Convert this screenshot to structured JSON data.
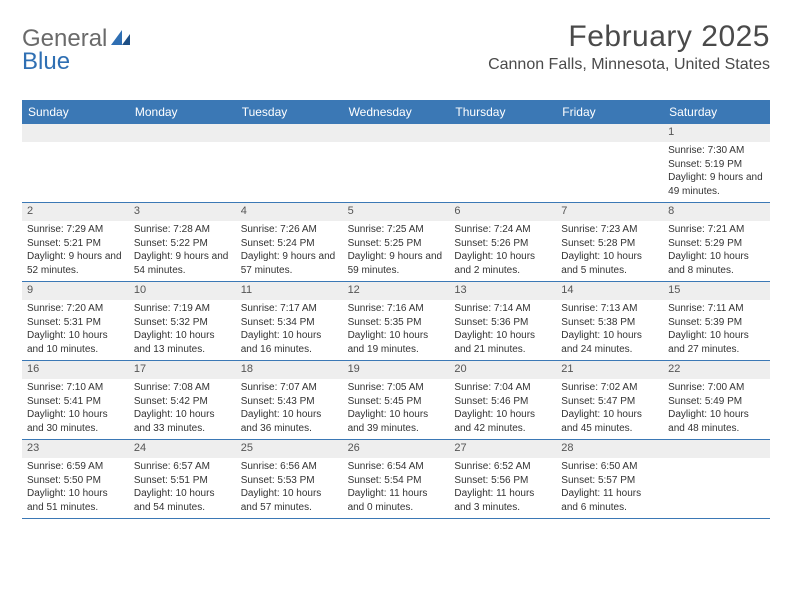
{
  "logo": {
    "text1": "General",
    "text2": "Blue"
  },
  "header": {
    "month_title": "February 2025",
    "location": "Cannon Falls, Minnesota, United States"
  },
  "colors": {
    "header_bar": "#3b78b5",
    "daynum_bg": "#eeeeee",
    "text": "#333333",
    "logo_blue": "#2f6fb3"
  },
  "day_names": [
    "Sunday",
    "Monday",
    "Tuesday",
    "Wednesday",
    "Thursday",
    "Friday",
    "Saturday"
  ],
  "weeks": [
    [
      {
        "n": "",
        "sunrise": "",
        "sunset": "",
        "daylight": ""
      },
      {
        "n": "",
        "sunrise": "",
        "sunset": "",
        "daylight": ""
      },
      {
        "n": "",
        "sunrise": "",
        "sunset": "",
        "daylight": ""
      },
      {
        "n": "",
        "sunrise": "",
        "sunset": "",
        "daylight": ""
      },
      {
        "n": "",
        "sunrise": "",
        "sunset": "",
        "daylight": ""
      },
      {
        "n": "",
        "sunrise": "",
        "sunset": "",
        "daylight": ""
      },
      {
        "n": "1",
        "sunrise": "Sunrise: 7:30 AM",
        "sunset": "Sunset: 5:19 PM",
        "daylight": "Daylight: 9 hours and 49 minutes."
      }
    ],
    [
      {
        "n": "2",
        "sunrise": "Sunrise: 7:29 AM",
        "sunset": "Sunset: 5:21 PM",
        "daylight": "Daylight: 9 hours and 52 minutes."
      },
      {
        "n": "3",
        "sunrise": "Sunrise: 7:28 AM",
        "sunset": "Sunset: 5:22 PM",
        "daylight": "Daylight: 9 hours and 54 minutes."
      },
      {
        "n": "4",
        "sunrise": "Sunrise: 7:26 AM",
        "sunset": "Sunset: 5:24 PM",
        "daylight": "Daylight: 9 hours and 57 minutes."
      },
      {
        "n": "5",
        "sunrise": "Sunrise: 7:25 AM",
        "sunset": "Sunset: 5:25 PM",
        "daylight": "Daylight: 9 hours and 59 minutes."
      },
      {
        "n": "6",
        "sunrise": "Sunrise: 7:24 AM",
        "sunset": "Sunset: 5:26 PM",
        "daylight": "Daylight: 10 hours and 2 minutes."
      },
      {
        "n": "7",
        "sunrise": "Sunrise: 7:23 AM",
        "sunset": "Sunset: 5:28 PM",
        "daylight": "Daylight: 10 hours and 5 minutes."
      },
      {
        "n": "8",
        "sunrise": "Sunrise: 7:21 AM",
        "sunset": "Sunset: 5:29 PM",
        "daylight": "Daylight: 10 hours and 8 minutes."
      }
    ],
    [
      {
        "n": "9",
        "sunrise": "Sunrise: 7:20 AM",
        "sunset": "Sunset: 5:31 PM",
        "daylight": "Daylight: 10 hours and 10 minutes."
      },
      {
        "n": "10",
        "sunrise": "Sunrise: 7:19 AM",
        "sunset": "Sunset: 5:32 PM",
        "daylight": "Daylight: 10 hours and 13 minutes."
      },
      {
        "n": "11",
        "sunrise": "Sunrise: 7:17 AM",
        "sunset": "Sunset: 5:34 PM",
        "daylight": "Daylight: 10 hours and 16 minutes."
      },
      {
        "n": "12",
        "sunrise": "Sunrise: 7:16 AM",
        "sunset": "Sunset: 5:35 PM",
        "daylight": "Daylight: 10 hours and 19 minutes."
      },
      {
        "n": "13",
        "sunrise": "Sunrise: 7:14 AM",
        "sunset": "Sunset: 5:36 PM",
        "daylight": "Daylight: 10 hours and 21 minutes."
      },
      {
        "n": "14",
        "sunrise": "Sunrise: 7:13 AM",
        "sunset": "Sunset: 5:38 PM",
        "daylight": "Daylight: 10 hours and 24 minutes."
      },
      {
        "n": "15",
        "sunrise": "Sunrise: 7:11 AM",
        "sunset": "Sunset: 5:39 PM",
        "daylight": "Daylight: 10 hours and 27 minutes."
      }
    ],
    [
      {
        "n": "16",
        "sunrise": "Sunrise: 7:10 AM",
        "sunset": "Sunset: 5:41 PM",
        "daylight": "Daylight: 10 hours and 30 minutes."
      },
      {
        "n": "17",
        "sunrise": "Sunrise: 7:08 AM",
        "sunset": "Sunset: 5:42 PM",
        "daylight": "Daylight: 10 hours and 33 minutes."
      },
      {
        "n": "18",
        "sunrise": "Sunrise: 7:07 AM",
        "sunset": "Sunset: 5:43 PM",
        "daylight": "Daylight: 10 hours and 36 minutes."
      },
      {
        "n": "19",
        "sunrise": "Sunrise: 7:05 AM",
        "sunset": "Sunset: 5:45 PM",
        "daylight": "Daylight: 10 hours and 39 minutes."
      },
      {
        "n": "20",
        "sunrise": "Sunrise: 7:04 AM",
        "sunset": "Sunset: 5:46 PM",
        "daylight": "Daylight: 10 hours and 42 minutes."
      },
      {
        "n": "21",
        "sunrise": "Sunrise: 7:02 AM",
        "sunset": "Sunset: 5:47 PM",
        "daylight": "Daylight: 10 hours and 45 minutes."
      },
      {
        "n": "22",
        "sunrise": "Sunrise: 7:00 AM",
        "sunset": "Sunset: 5:49 PM",
        "daylight": "Daylight: 10 hours and 48 minutes."
      }
    ],
    [
      {
        "n": "23",
        "sunrise": "Sunrise: 6:59 AM",
        "sunset": "Sunset: 5:50 PM",
        "daylight": "Daylight: 10 hours and 51 minutes."
      },
      {
        "n": "24",
        "sunrise": "Sunrise: 6:57 AM",
        "sunset": "Sunset: 5:51 PM",
        "daylight": "Daylight: 10 hours and 54 minutes."
      },
      {
        "n": "25",
        "sunrise": "Sunrise: 6:56 AM",
        "sunset": "Sunset: 5:53 PM",
        "daylight": "Daylight: 10 hours and 57 minutes."
      },
      {
        "n": "26",
        "sunrise": "Sunrise: 6:54 AM",
        "sunset": "Sunset: 5:54 PM",
        "daylight": "Daylight: 11 hours and 0 minutes."
      },
      {
        "n": "27",
        "sunrise": "Sunrise: 6:52 AM",
        "sunset": "Sunset: 5:56 PM",
        "daylight": "Daylight: 11 hours and 3 minutes."
      },
      {
        "n": "28",
        "sunrise": "Sunrise: 6:50 AM",
        "sunset": "Sunset: 5:57 PM",
        "daylight": "Daylight: 11 hours and 6 minutes."
      },
      {
        "n": "",
        "sunrise": "",
        "sunset": "",
        "daylight": ""
      }
    ]
  ]
}
